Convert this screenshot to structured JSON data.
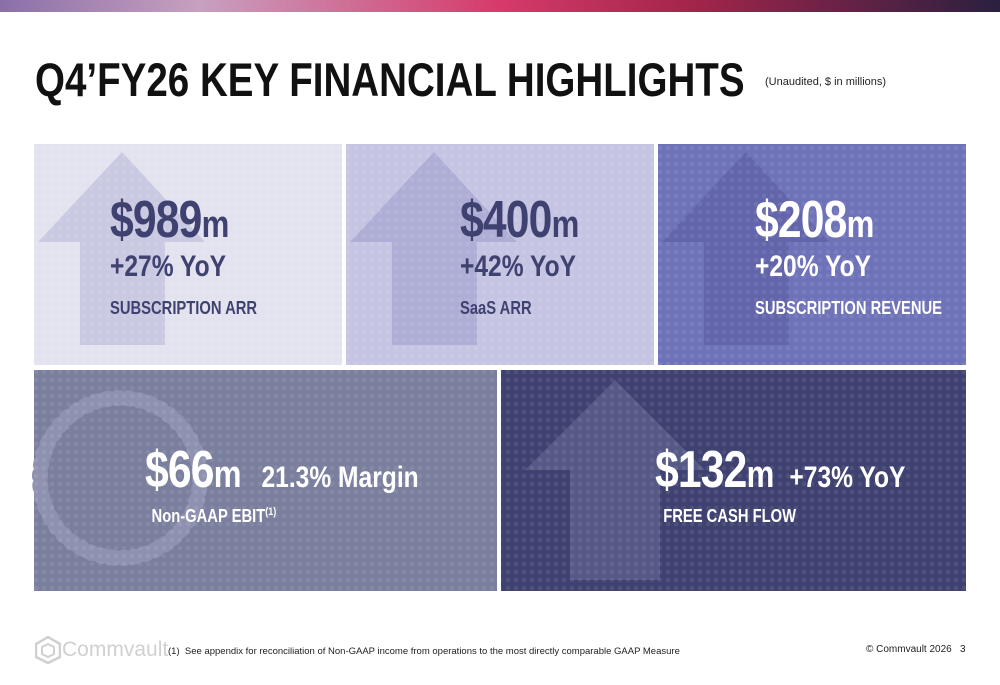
{
  "header": {
    "title": "Q4’FY26 KEY FINANCIAL HIGHLIGHTS",
    "subtitle": "(Unaudited, $ in millions)"
  },
  "cards": [
    {
      "amount": "$989",
      "unit": "m",
      "growth": "+27% YoY",
      "label": "SUBSCRIPTION ARR"
    },
    {
      "amount": "$400",
      "unit": "m",
      "growth": "+42% YoY",
      "label": "SaaS ARR"
    },
    {
      "amount": "$208",
      "unit": "m",
      "growth": "+20% YoY",
      "label": "SUBSCRIPTION REVENUE"
    },
    {
      "amount": "$66",
      "unit": "m",
      "growth": "21.3% Margin",
      "label": "Non-GAAP EBIT",
      "label_note": "(1)"
    },
    {
      "amount": "$132",
      "unit": "m",
      "growth": "+73% YoY",
      "label": "FREE CASH FLOW"
    }
  ],
  "footer": {
    "logo": "Commvault",
    "footnote_marker": "(1)",
    "footnote": "See appendix for reconciliation of Non-GAAP income from operations to the most directly comparable GAAP Measure",
    "copyright": "© Commvault 2026",
    "page": "3"
  }
}
